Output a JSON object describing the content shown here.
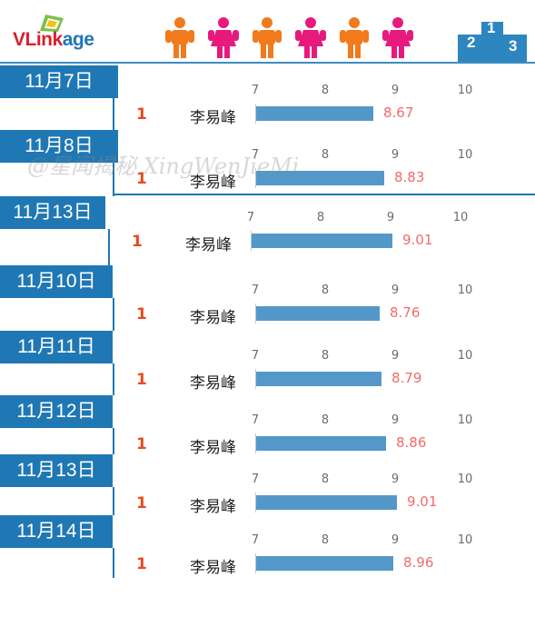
{
  "brand": {
    "part1": "VLink",
    "part2": "age"
  },
  "watermark": "@星闻揭秘 XingWenJieMi",
  "colors": {
    "accent": "#1f78b4",
    "bar": "#5498c9",
    "rank": "#e64b1d",
    "value": "#f06c6c",
    "male": "#f07a1c",
    "female": "#e8197d"
  },
  "chart_data": {
    "type": "bar",
    "orientation": "horizontal",
    "xlim": [
      7,
      10
    ],
    "ticks": [
      "7",
      "8",
      "9",
      "10"
    ],
    "panels": [
      {
        "date": "11月7日",
        "rank": "1",
        "name": "李易峰",
        "value": 8.67,
        "label": "8.67"
      },
      {
        "date": "11月8日",
        "rank": "1",
        "name": "李易峰",
        "value": 8.83,
        "label": "8.83"
      },
      {
        "date": "11月13日",
        "rank": "1",
        "name": "李易峰",
        "value": 9.01,
        "label": "9.01"
      },
      {
        "date": "11月10日",
        "rank": "1",
        "name": "李易峰",
        "value": 8.76,
        "label": "8.76"
      },
      {
        "date": "11月11日",
        "rank": "1",
        "name": "李易峰",
        "value": 8.79,
        "label": "8.79"
      },
      {
        "date": "11月12日",
        "rank": "1",
        "name": "李易峰",
        "value": 8.86,
        "label": "8.86"
      },
      {
        "date": "11月13日",
        "rank": "1",
        "name": "李易峰",
        "value": 9.01,
        "label": "9.01"
      },
      {
        "date": "11月14日",
        "rank": "1",
        "name": "李易峰",
        "value": 8.96,
        "label": "8.96"
      }
    ]
  }
}
